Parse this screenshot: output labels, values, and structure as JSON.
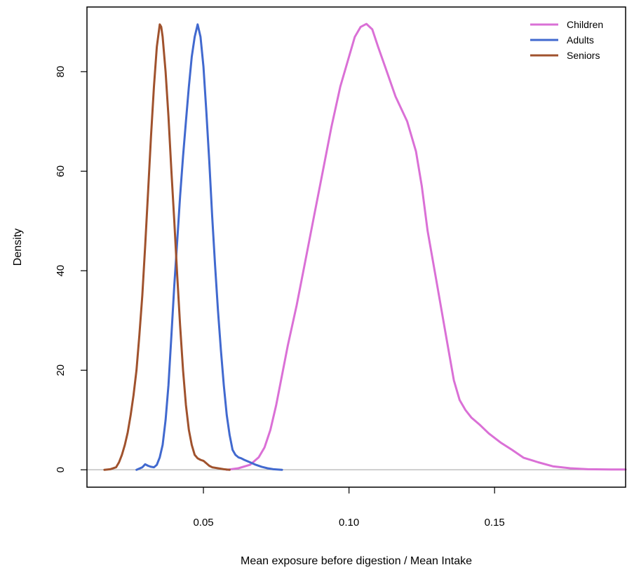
{
  "chart_data": {
    "type": "line",
    "title": "",
    "xlabel": "Mean exposure before digestion / Mean Intake",
    "ylabel": "Density",
    "xlim": [
      0.01,
      0.195
    ],
    "ylim": [
      -3.5,
      93
    ],
    "xticks": [
      "0.05",
      "0.10",
      "0.15"
    ],
    "xtick_values": [
      0.05,
      0.1,
      0.15
    ],
    "yticks": [
      "0",
      "20",
      "40",
      "60",
      "80"
    ],
    "ytick_values": [
      0,
      20,
      40,
      60,
      80
    ],
    "grid": false,
    "baseline": 0,
    "legend_position": "top-right",
    "series": [
      {
        "name": "Children",
        "color": "#DA70D6",
        "x": [
          0.058,
          0.062,
          0.066,
          0.069,
          0.071,
          0.073,
          0.075,
          0.077,
          0.079,
          0.082,
          0.085,
          0.088,
          0.091,
          0.094,
          0.097,
          0.1,
          0.102,
          0.104,
          0.106,
          0.108,
          0.11,
          0.113,
          0.116,
          0.12,
          0.123,
          0.125,
          0.127,
          0.13,
          0.133,
          0.136,
          0.138,
          0.14,
          0.142,
          0.145,
          0.148,
          0.152,
          0.156,
          0.16,
          0.165,
          0.17,
          0.176,
          0.182,
          0.19,
          0.195
        ],
        "y": [
          0,
          0.3,
          1,
          2.5,
          4.5,
          8,
          13,
          19,
          25,
          33,
          42,
          51,
          60,
          69,
          77,
          83,
          87,
          89,
          89.6,
          88.5,
          85,
          80,
          75,
          70,
          64,
          57,
          48,
          38,
          28,
          18,
          14,
          12,
          10.5,
          9,
          7.3,
          5.5,
          4,
          2.4,
          1.5,
          0.7,
          0.3,
          0.1,
          0.05,
          0.05
        ]
      },
      {
        "name": "Adults",
        "color": "#4169CF",
        "x": [
          0.027,
          0.029,
          0.03,
          0.031,
          0.032,
          0.033,
          0.034,
          0.035,
          0.036,
          0.037,
          0.038,
          0.039,
          0.04,
          0.041,
          0.042,
          0.043,
          0.044,
          0.045,
          0.046,
          0.047,
          0.048,
          0.049,
          0.05,
          0.051,
          0.052,
          0.053,
          0.054,
          0.055,
          0.056,
          0.057,
          0.058,
          0.059,
          0.06,
          0.061,
          0.062,
          0.063,
          0.064,
          0.066,
          0.068,
          0.07,
          0.072,
          0.074,
          0.077
        ],
        "y": [
          0,
          0.5,
          1.1,
          0.8,
          0.6,
          0.5,
          1,
          2.5,
          5,
          10,
          17,
          27,
          37,
          46,
          55,
          63,
          70,
          77,
          83,
          87,
          89.5,
          87,
          81,
          72,
          62,
          51,
          41,
          32,
          24,
          17,
          11,
          7,
          4,
          3,
          2.5,
          2.3,
          2,
          1.5,
          1,
          0.6,
          0.3,
          0.1,
          0
        ]
      },
      {
        "name": "Seniors",
        "color": "#A0522D",
        "x": [
          0.016,
          0.018,
          0.02,
          0.021,
          0.022,
          0.023,
          0.024,
          0.025,
          0.026,
          0.027,
          0.028,
          0.029,
          0.03,
          0.031,
          0.032,
          0.033,
          0.034,
          0.035,
          0.0355,
          0.036,
          0.037,
          0.038,
          0.039,
          0.04,
          0.041,
          0.042,
          0.043,
          0.044,
          0.045,
          0.046,
          0.047,
          0.048,
          0.049,
          0.05,
          0.051,
          0.052,
          0.053,
          0.055,
          0.057,
          0.059
        ],
        "y": [
          0,
          0.1,
          0.5,
          1.5,
          3,
          5,
          7.5,
          11,
          15,
          20,
          27,
          35,
          45,
          56,
          67,
          77,
          85,
          89.5,
          89,
          87,
          80,
          71,
          60,
          50,
          39,
          29,
          20,
          13,
          8,
          5,
          3,
          2.3,
          2,
          1.8,
          1.3,
          0.8,
          0.5,
          0.3,
          0.1,
          0
        ]
      }
    ]
  }
}
